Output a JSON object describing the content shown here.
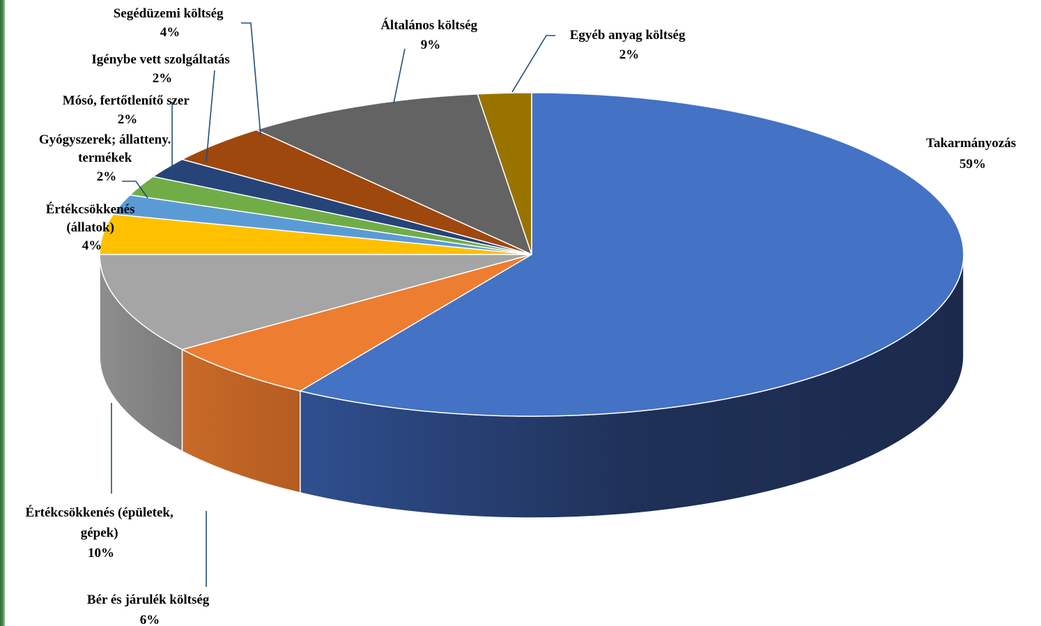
{
  "chart_data": {
    "type": "pie",
    "title": "",
    "style": "3d-exploded-none",
    "slices": [
      {
        "name": "Takarmányozás",
        "label": "Takarmányozás",
        "pct": "59%",
        "value": 59,
        "color": "#4472C4",
        "side": "#1F2D52"
      },
      {
        "name": "Bér és járulék költség",
        "label": "Bér és járulék költség",
        "pct": "6%",
        "value": 6,
        "color": "#ED7D31",
        "side": "#B85D24"
      },
      {
        "name": "Értékcsökkenés (épületek, gépek)",
        "label": "Értékcsökkenés (épületek, gépek)",
        "pct": "10%",
        "value": 10,
        "color": "#A5A5A5",
        "side": "#7F7F7F"
      },
      {
        "name": "Értékcsökkenés (állatok)",
        "label": "Értékcsökkenés (állatok)",
        "pct": "4%",
        "value": 4,
        "color": "#FFC000",
        "side": "#C79500"
      },
      {
        "name": "Gyógyszerek; állatteny. termékek",
        "label": "Gyógyszerek; állatteny. termékek",
        "pct": "2%",
        "value": 2,
        "color": "#5B9BD5",
        "side": "#3E75A8"
      },
      {
        "name": "Mósó, fertőtlenítő szer",
        "label": "Mósó, fertőtlenítő szer",
        "pct": "2%",
        "value": 2,
        "color": "#70AD47",
        "side": "#4E7D32"
      },
      {
        "name": "Igénybe vett szolgáltatás",
        "label": "Igénybe vett szolgáltatás",
        "pct": "2%",
        "value": 2,
        "color": "#264478",
        "side": "#1A2F55"
      },
      {
        "name": "Segédüzemi költség",
        "label": "Segédüzemi költség",
        "pct": "4%",
        "value": 4,
        "color": "#9E480E",
        "side": "#6E320A"
      },
      {
        "name": "Általános költség",
        "label": "Általános költség",
        "pct": "9%",
        "value": 9,
        "color": "#636363",
        "side": "#454545"
      },
      {
        "name": "Egyéb anyag költség",
        "label": "Egyéb anyag költség",
        "pct": "2%",
        "value": 2,
        "color": "#997300",
        "side": "#6B5000"
      }
    ]
  },
  "labels": {
    "takarmany": {
      "l1": "Takarmányozás",
      "pct": "59%"
    },
    "ber": {
      "l1": "Bér és járulék költség",
      "pct": "6%"
    },
    "ertek_epulet": {
      "l1": "Értékcsökkenés (épületek,",
      "l2": "gépek)",
      "pct": "10%"
    },
    "ertek_allat": {
      "l1": "Értékcsökkenés",
      "l2": "(állatok)",
      "pct": "4%"
    },
    "gyogyszer": {
      "l1": "Gyógyszerek; állatteny.",
      "l2": "termékek",
      "pct": "2%"
    },
    "moso": {
      "l1": "Mósó, fertőtlenítő szer",
      "pct": "2%"
    },
    "igenybe": {
      "l1": "Igénybe vett szolgáltatás",
      "pct": "2%"
    },
    "seged": {
      "l1": "Segédüzemi költség",
      "pct": "4%"
    },
    "altalanos": {
      "l1": "Általános költség",
      "pct": "9%"
    },
    "egyeb": {
      "l1": "Egyéb anyag költség",
      "pct": "2%"
    }
  }
}
